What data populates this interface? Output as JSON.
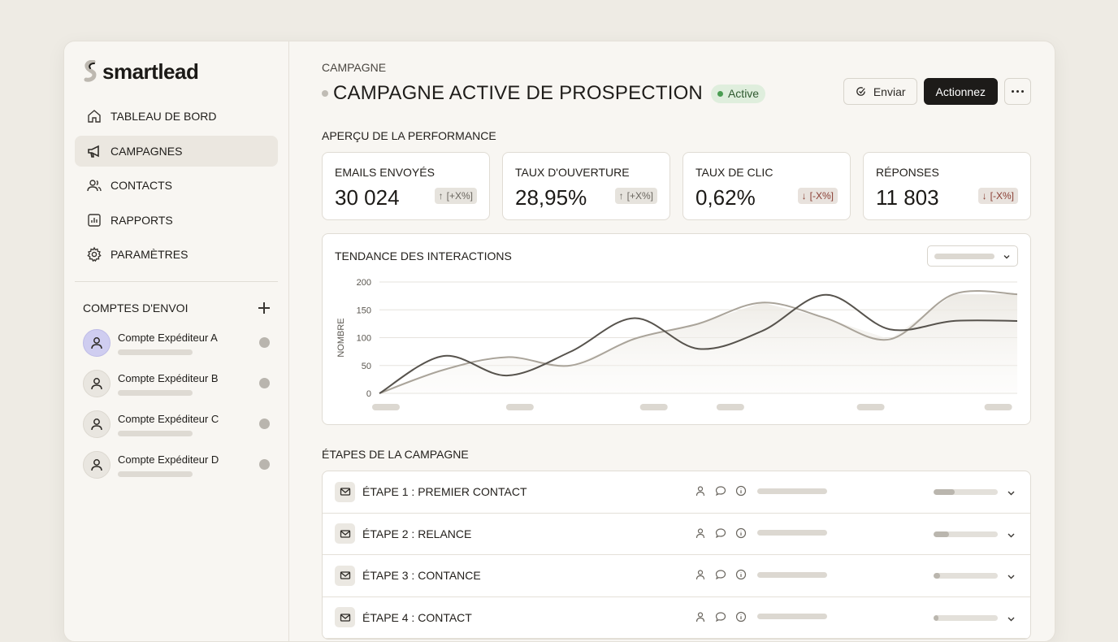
{
  "brand": {
    "name": "smartlead",
    "logo_icon": "smartlead-logo-icon"
  },
  "nav": {
    "items": [
      {
        "label": "TABLEAU DE BORD",
        "icon": "home-icon",
        "active": false
      },
      {
        "label": "CAMPAGNES",
        "icon": "megaphone-icon",
        "active": true
      },
      {
        "label": "CONTACTS",
        "icon": "users-icon",
        "active": false
      },
      {
        "label": "RAPPORTS",
        "icon": "report-icon",
        "active": false
      },
      {
        "label": "PARAMÈTRES",
        "icon": "gear-icon",
        "active": false
      }
    ]
  },
  "accounts": {
    "title": "COMPTES D'ENVOI",
    "add_icon": "plus-icon",
    "items": [
      {
        "name": "Compte Expéditeur A"
      },
      {
        "name": "Compte Expéditeur B"
      },
      {
        "name": "Compte Expéditeur C"
      },
      {
        "name": "Compte Expéditeur D"
      }
    ]
  },
  "header": {
    "eyebrow": "CAMPAGNE",
    "title": "CAMPAGNE ACTIVE DE PROSPECTION",
    "status": "Active",
    "send_label": "Enviar",
    "action_label": "Actionnez",
    "more_icon": "more-icon"
  },
  "performance": {
    "title": "APERÇU DE LA PERFORMANCE",
    "kpis": [
      {
        "label": "EMAILS ENVOYÉS",
        "value": "30 024",
        "delta": "[+X%]",
        "direction": "up"
      },
      {
        "label": "TAUX D'OUVERTURE",
        "value": "28,95%",
        "delta": "[+X%]",
        "direction": "up"
      },
      {
        "label": "TAUX DE CLIC",
        "value": "0,62%",
        "delta": "[-X%]",
        "direction": "down"
      },
      {
        "label": "RÉPONSES",
        "value": "11 803",
        "delta": "[-X%]",
        "direction": "down"
      }
    ]
  },
  "chart_data": {
    "type": "line",
    "title": "TENDANCE DES INTERACTIONS",
    "ylabel": "NOMBRE",
    "xlabel": "",
    "ylim": [
      0,
      200
    ],
    "yticks": [
      0,
      50,
      100,
      150,
      200
    ],
    "x": [
      0,
      1,
      2,
      3,
      4,
      5,
      6,
      7,
      8,
      9,
      10
    ],
    "grid": true,
    "colors": {
      "dark": "#57534d",
      "light": "#aaa49a"
    },
    "series": [
      {
        "values": [
          0,
          67,
          32,
          75,
          135,
          80,
          112,
          177,
          115,
          130,
          130
        ]
      },
      {
        "values": [
          0,
          42,
          65,
          50,
          98,
          125,
          163,
          135,
          97,
          178,
          178
        ]
      }
    ]
  },
  "steps": {
    "title": "ÉTAPES DE LA CAMPAGNE",
    "items": [
      {
        "label": "ÉTAPE 1 : PREMIER CONTACT",
        "progress": 0.33
      },
      {
        "label": "ÉTAPE 2 : RELANCE",
        "progress": 0.24
      },
      {
        "label": "ÉTAPE 3 : CONTANCE",
        "progress": 0.1
      },
      {
        "label": "ÉTAPE 4 : CONTACT",
        "progress": 0.08
      }
    ]
  }
}
